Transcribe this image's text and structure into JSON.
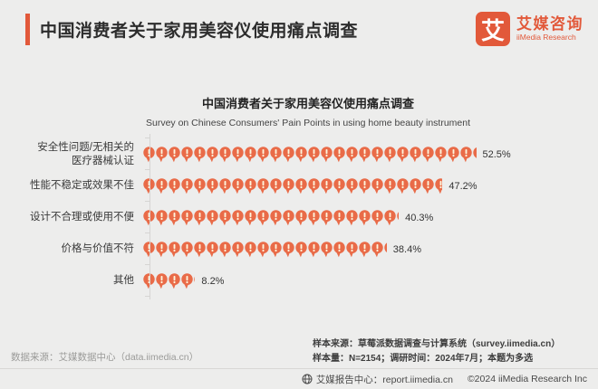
{
  "page": {
    "background": "#ededec",
    "accent_color": "#e2593a"
  },
  "header": {
    "title": "中国消费者关于家用美容仪使用痛点调查",
    "logo_char": "艾",
    "brand_cn": "艾媒咨询",
    "brand_en": "iiMedia Research"
  },
  "chart_data": {
    "type": "bar",
    "variant": "pictogram",
    "orientation": "horizontal",
    "icon": "exclamation-speech-bubble-icon",
    "icon_color": "#e96b48",
    "title": "中国消费者关于家用美容仪使用痛点调查",
    "subtitle": "Survey on Chinese Consumers' Pain Points in using home beauty instrument",
    "categories": [
      "安全性问题/无相关的医疗器械认证",
      "性能不稳定或效果不佳",
      "设计不合理或使用不便",
      "价格与价值不符",
      "其他"
    ],
    "values": [
      52.5,
      47.2,
      40.3,
      38.4,
      8.2
    ],
    "value_labels": [
      "52.5%",
      "47.2%",
      "40.3%",
      "38.4%",
      "8.2%"
    ],
    "unit": "%",
    "xlim": [
      0,
      60
    ],
    "grid": false,
    "legend": false
  },
  "footer": {
    "source_left": "数据来源：艾媒数据中心（data.iimedia.cn）",
    "sample_source": "样本来源：草莓派数据调查与计算系统（survey.iimedia.cn）",
    "sample_info": "样本量：N=2154；调研时间：2024年7月；本题为多选",
    "report_center": "艾媒报告中心：report.iimedia.cn",
    "copyright": "©2024 iiMedia Research Inc"
  }
}
